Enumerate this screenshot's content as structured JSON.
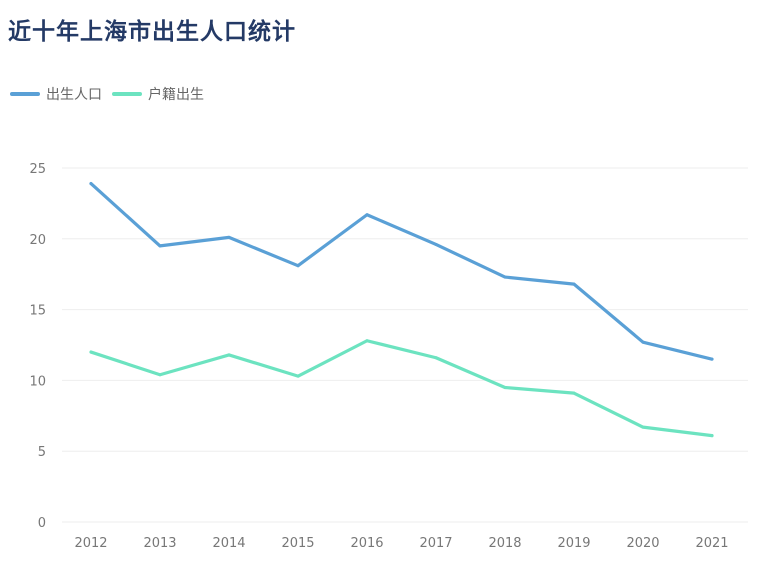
{
  "title": "近十年上海市出生人口统计",
  "colors": {
    "birth": "#5aa0d6",
    "registered": "#6ce3c0"
  },
  "chart_data": {
    "type": "line",
    "title": "近十年上海市出生人口统计",
    "x": [
      "2012",
      "2013",
      "2014",
      "2015",
      "2016",
      "2017",
      "2018",
      "2019",
      "2020",
      "2021"
    ],
    "series": [
      {
        "name": "出生人口",
        "values": [
          23.9,
          19.5,
          20.1,
          18.1,
          21.7,
          19.6,
          17.3,
          16.8,
          12.7,
          11.5
        ]
      },
      {
        "name": "户籍出生",
        "values": [
          12.0,
          10.4,
          11.8,
          10.3,
          12.8,
          11.6,
          9.5,
          9.1,
          6.7,
          6.1
        ]
      }
    ],
    "ylim": [
      0,
      25
    ],
    "yticks": [
      0,
      5,
      10,
      15,
      20,
      25
    ],
    "legend": "top-left",
    "grid": true
  }
}
